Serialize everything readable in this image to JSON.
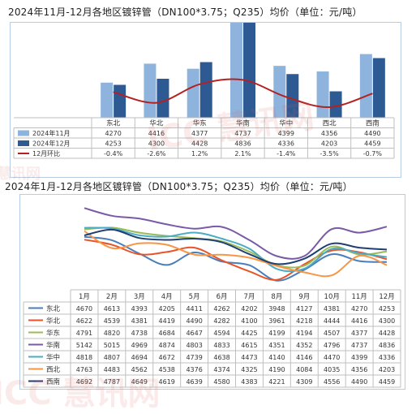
{
  "chart_data": [
    {
      "type": "bar",
      "title": "2024年11月-12月各地区镀锌管（DN100*3.75；Q235）均价（单位：元/吨）",
      "categories": [
        "东北",
        "华北",
        "华东",
        "华南",
        "华中",
        "西北",
        "西南"
      ],
      "series": [
        {
          "name": "2024年11月",
          "type": "bar",
          "color": "#8eb4de",
          "values": [
            4270,
            4416,
            4377,
            4737,
            4399,
            4356,
            4490
          ]
        },
        {
          "name": "2024年12月",
          "type": "bar",
          "color": "#2e5a94",
          "values": [
            4253,
            4300,
            4428,
            4836,
            4336,
            4203,
            4459
          ]
        },
        {
          "name": "12月环比",
          "type": "line",
          "color": "#b22222",
          "values": [
            -0.4,
            -2.6,
            1.2,
            2.1,
            -1.4,
            -3.5,
            -0.7
          ],
          "labels": [
            "-0.4%",
            "-2.6%",
            "1.2%",
            "2.1%",
            "-1.4%",
            "-3.5%",
            "-0.7%"
          ]
        }
      ],
      "table": true
    },
    {
      "type": "line",
      "title": "2024年1月-12月各地区镀锌管（DN100*3.75；Q235）均价（单位：元/吨）",
      "categories": [
        "1月",
        "2月",
        "3月",
        "4月",
        "5月",
        "6月",
        "7月",
        "8月",
        "9月",
        "10月",
        "11月",
        "12月"
      ],
      "ylim": [
        3850,
        5200
      ],
      "series": [
        {
          "name": "东北",
          "color": "#4a7ebb",
          "values": [
            4670,
            4613,
            4393,
            4205,
            4411,
            4262,
            4202,
            3948,
            4127,
            4381,
            4270,
            4253
          ]
        },
        {
          "name": "华北",
          "color": "#e8542a",
          "values": [
            4622,
            4539,
            4381,
            4419,
            4490,
            4282,
            4100,
            3961,
            4218,
            4444,
            4416,
            4300
          ]
        },
        {
          "name": "华东",
          "color": "#9bbb59",
          "values": [
            4791,
            4820,
            4738,
            4684,
            4647,
            4594,
            4425,
            4199,
            4194,
            4507,
            4377,
            4428
          ]
        },
        {
          "name": "华南",
          "color": "#7a5aa6",
          "values": [
            5142,
            5015,
            4969,
            4874,
            4803,
            4833,
            4615,
            4351,
            4352,
            4796,
            4737,
            4836
          ]
        },
        {
          "name": "华中",
          "color": "#4bacc6",
          "values": [
            4818,
            4807,
            4694,
            4672,
            4739,
            4638,
            4473,
            4140,
            4146,
            4470,
            4399,
            4336
          ]
        },
        {
          "name": "西北",
          "color": "#f79646",
          "values": [
            4763,
            4483,
            4562,
            4538,
            4376,
            4374,
            4325,
            4190,
            4084,
            4035,
            4356,
            4203
          ]
        },
        {
          "name": "西南",
          "color": "#1f3f73",
          "values": [
            4692,
            4787,
            4649,
            4619,
            4639,
            4580,
            4383,
            4221,
            4309,
            4556,
            4490,
            4459
          ]
        }
      ],
      "table": true
    }
  ],
  "watermark": "ICC 慧讯网",
  "watermark_short": "慧讯网"
}
